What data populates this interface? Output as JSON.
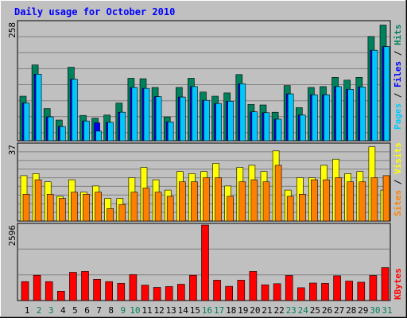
{
  "title": "Daily usage for October 2010",
  "colors": {
    "background": "#c0c0c0",
    "plot": "#c0c0c0",
    "grid": "#808080",
    "title": "#0000ff",
    "hits": "#00805c",
    "files": "#0000ff",
    "pages": "#00c8ff",
    "visits": "#ffff00",
    "sites": "#ff8000",
    "kbytes": "#ff0000",
    "weekday_label": "#000000",
    "weekend_label": "#00805c"
  },
  "chart_data": [
    {
      "type": "bar",
      "categories": [
        "1",
        "2",
        "3",
        "4",
        "5",
        "6",
        "7",
        "8",
        "9",
        "10",
        "11",
        "12",
        "13",
        "14",
        "15",
        "16",
        "17",
        "18",
        "19",
        "20",
        "21",
        "22",
        "23",
        "24",
        "25",
        "26",
        "27",
        "28",
        "29",
        "30",
        "31"
      ],
      "weekend_days": [
        "2",
        "3",
        "9",
        "10",
        "16",
        "17",
        "23",
        "24",
        "30",
        "31"
      ],
      "ymax_label": "258",
      "ylabels": [
        "Hits",
        "Files",
        "Pages"
      ],
      "ylim": [
        0,
        258
      ],
      "series": [
        {
          "name": "Hits",
          "values": [
            97,
            165,
            70,
            45,
            160,
            55,
            49,
            56,
            82,
            136,
            135,
            116,
            52,
            116,
            136,
            106,
            97,
            104,
            144,
            79,
            78,
            62,
            120,
            72,
            116,
            118,
            138,
            132,
            138,
            227,
            252
          ]
        },
        {
          "name": "Files",
          "values": [
            82,
            145,
            52,
            31,
            134,
            43,
            39,
            40,
            62,
            116,
            114,
            96,
            41,
            95,
            118,
            88,
            81,
            86,
            124,
            63,
            61,
            47,
            102,
            56,
            100,
            100,
            118,
            112,
            117,
            197,
            205
          ]
        },
        {
          "name": "Pages",
          "values": [
            82,
            145,
            52,
            31,
            134,
            43,
            21,
            40,
            62,
            116,
            114,
            96,
            41,
            95,
            118,
            88,
            81,
            86,
            124,
            63,
            61,
            47,
            102,
            56,
            100,
            100,
            118,
            112,
            117,
            197,
            205
          ]
        }
      ]
    },
    {
      "type": "bar",
      "categories": [
        "1",
        "2",
        "3",
        "4",
        "5",
        "6",
        "7",
        "8",
        "9",
        "10",
        "11",
        "12",
        "13",
        "14",
        "15",
        "16",
        "17",
        "18",
        "19",
        "20",
        "21",
        "22",
        "23",
        "24",
        "25",
        "26",
        "27",
        "28",
        "29",
        "30",
        "31"
      ],
      "ymax_label": "37",
      "ylabels": [
        "Visits",
        "Sites"
      ],
      "ylim": [
        0,
        37
      ],
      "series": [
        {
          "name": "Visits",
          "values": [
            22,
            23,
            19,
            12,
            20,
            14,
            17,
            11,
            11,
            21,
            26,
            20,
            15,
            24,
            23,
            24,
            28,
            17,
            26,
            27,
            24,
            34,
            15,
            21,
            21,
            27,
            30,
            23,
            24,
            36,
            15
          ]
        },
        {
          "name": "Sites",
          "values": [
            13,
            20,
            13,
            11,
            14,
            13,
            14,
            6,
            8,
            14,
            16,
            14,
            12,
            19,
            19,
            21,
            21,
            12,
            19,
            20,
            19,
            27,
            12,
            13,
            20,
            20,
            21,
            19,
            19,
            21,
            22
          ]
        }
      ]
    },
    {
      "type": "bar",
      "categories": [
        "1",
        "2",
        "3",
        "4",
        "5",
        "6",
        "7",
        "8",
        "9",
        "10",
        "11",
        "12",
        "13",
        "14",
        "15",
        "16",
        "17",
        "18",
        "19",
        "20",
        "21",
        "22",
        "23",
        "24",
        "25",
        "26",
        "27",
        "28",
        "29",
        "30",
        "31"
      ],
      "ymax_label": "2596",
      "ylabels": [
        "KBytes"
      ],
      "ylim": [
        0,
        2596
      ],
      "series": [
        {
          "name": "KBytes",
          "values": [
            650,
            870,
            650,
            320,
            970,
            1000,
            730,
            650,
            590,
            890,
            530,
            450,
            480,
            560,
            870,
            2596,
            700,
            490,
            700,
            1000,
            540,
            580,
            860,
            440,
            600,
            590,
            850,
            670,
            630,
            860,
            1130
          ]
        }
      ]
    }
  ]
}
